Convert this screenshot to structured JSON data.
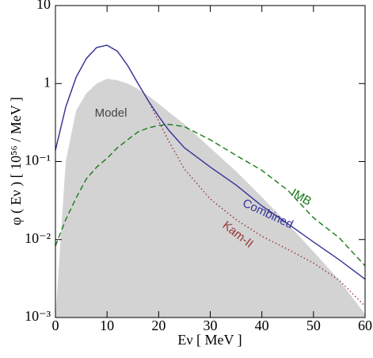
{
  "chart_data": {
    "type": "line",
    "xlabel": "Eν  [ MeV ]",
    "ylabel": "φ ( Eν )  [ 10⁵⁶ / MeV ]",
    "x": [
      0,
      2,
      4,
      6,
      8,
      10,
      12,
      14,
      16,
      18,
      20,
      22,
      25,
      30,
      35,
      40,
      45,
      50,
      55,
      60
    ],
    "series": [
      {
        "name": "Model",
        "style": "area",
        "color": "#d3d3d3",
        "values": [
          0.001,
          0.1,
          0.45,
          0.75,
          1.0,
          1.15,
          1.1,
          1.0,
          0.85,
          0.7,
          0.55,
          0.43,
          0.3,
          0.15,
          0.075,
          0.035,
          0.016,
          0.007,
          0.003,
          0.0011
        ]
      },
      {
        "name": "IMB",
        "style": "dashed",
        "color": "#1a7a1a",
        "values": [
          0.0083,
          0.018,
          0.034,
          0.06,
          0.085,
          0.11,
          0.15,
          0.19,
          0.24,
          0.27,
          0.29,
          0.3,
          0.28,
          0.19,
          0.12,
          0.077,
          0.043,
          0.019,
          0.0105,
          0.0046
        ]
      },
      {
        "name": "Kam-II",
        "style": "dotted",
        "color": "#993333",
        "values": [
          0.14,
          0.5,
          1.2,
          2.1,
          2.9,
          3.1,
          2.6,
          1.7,
          1.0,
          0.6,
          0.33,
          0.18,
          0.08,
          0.033,
          0.018,
          0.011,
          0.0075,
          0.005,
          0.003,
          0.0014
        ]
      },
      {
        "name": "Combined",
        "style": "solid",
        "color": "#333399",
        "values": [
          0.14,
          0.5,
          1.2,
          2.1,
          2.9,
          3.1,
          2.6,
          1.7,
          1.0,
          0.6,
          0.38,
          0.25,
          0.15,
          0.085,
          0.05,
          0.027,
          0.016,
          0.0093,
          0.0055,
          0.0031
        ]
      }
    ],
    "xlim": [
      0,
      60
    ],
    "xticks": [
      0,
      10,
      20,
      30,
      40,
      50,
      60
    ],
    "ylim": [
      0.001,
      10
    ],
    "yscale": "log",
    "yticks": [
      {
        "value": 0.001,
        "label": "10⁻³"
      },
      {
        "value": 0.01,
        "label": "10⁻²"
      },
      {
        "value": 0.1,
        "label": "10⁻¹"
      },
      1,
      10
    ]
  }
}
